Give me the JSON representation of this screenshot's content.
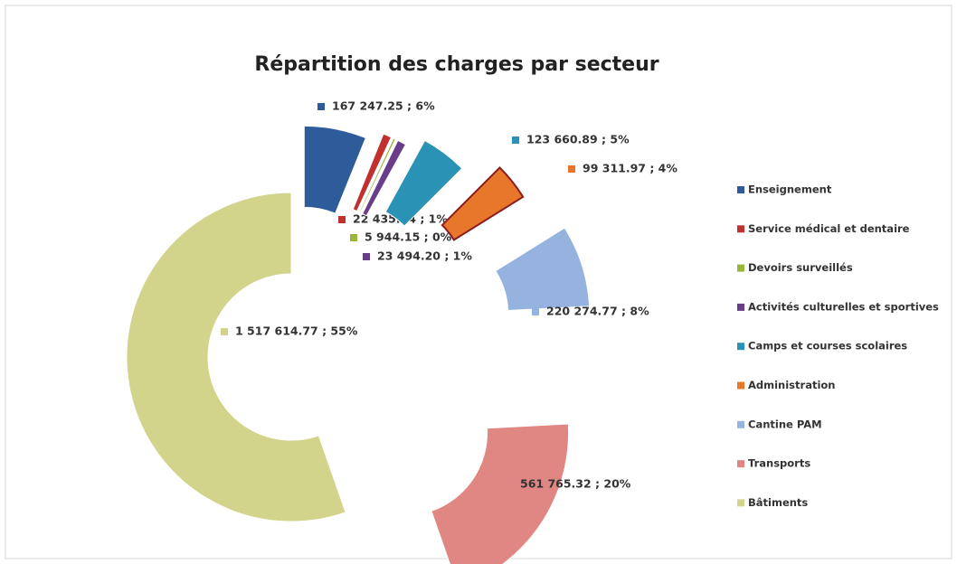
{
  "chart_data": {
    "type": "donut",
    "title": "Répartition des charges par secteur",
    "categories": [
      "Enseignement",
      "Service médical et dentaire",
      "Devoirs surveillés",
      "Activités culturelles et sportives",
      "Camps et courses scolaires",
      "Administration",
      "Cantine PAM",
      "Transports",
      "Bâtiments"
    ],
    "values": [
      167247.25,
      22435.14,
      5944.15,
      23494.2,
      123660.89,
      99311.97,
      220274.77,
      561765.32,
      1517614.77
    ],
    "value_labels": [
      "167 247.25 ; 6%",
      "22 435.14 ; 1%",
      "5 944.15 ; 0%",
      "23 494.20 ; 1%",
      "123 660.89 ; 5%",
      "99 311.97 ; 4%",
      "220 274.77 ; 8%",
      "561 765.32 ; 20%",
      "1 517 614.77 ; 55%"
    ],
    "colors": [
      "#2e5b9a",
      "#c0302e",
      "#9bb53a",
      "#6a3d8a",
      "#2a93b5",
      "#e8762b",
      "#95b3de",
      "#e08683",
      "#d2d48b"
    ],
    "legend": "right"
  }
}
